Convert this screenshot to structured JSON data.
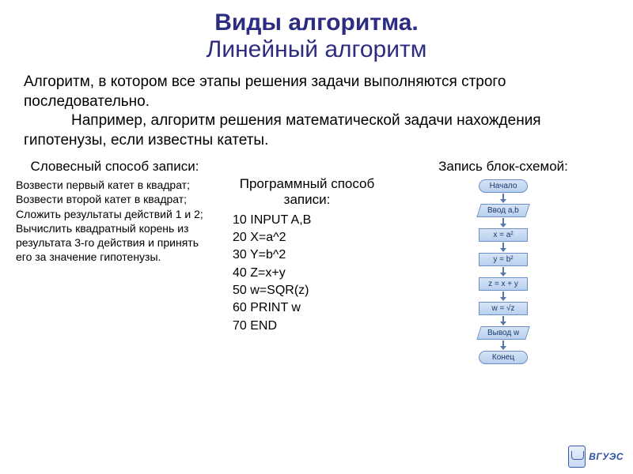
{
  "title": {
    "main": "Виды алгоритма.",
    "sub": "Линейный алгоритм"
  },
  "intro": {
    "p1": "Алгоритм, в котором все этапы решения задачи выполняются строго последовательно.",
    "p2": "Например, алгоритм решения математической задачи нахождения гипотенузы, если известны катеты."
  },
  "columns": {
    "verbal": {
      "title": "Словесный способ записи:",
      "body": "Возвести первый катет в квадрат;\nВозвести второй катет в квадрат;\nСложить результаты действий 1 и 2;\nВычислить квадратный корень из результата 3-го действия и принять его за значение гипотенузы.",
      "fontsize": 14
    },
    "program": {
      "title": "Программный способ записи:",
      "lines": [
        "10 INPUT A,B",
        "20 X=a^2",
        "30 Y=b^2",
        "40 Z=x+y",
        "50 w=SQR(z)",
        "60 PRINT w",
        "70 END"
      ],
      "fontsize": 16
    },
    "flow": {
      "title": "Запись блок-схемой:",
      "nodes": [
        {
          "label": "Начало",
          "shape": "terminal"
        },
        {
          "label": "Ввод a,b",
          "shape": "io"
        },
        {
          "label": "x = a²",
          "shape": "process"
        },
        {
          "label": "y = b²",
          "shape": "process"
        },
        {
          "label": "z = x + y",
          "shape": "process"
        },
        {
          "label": "w = √z",
          "shape": "process"
        },
        {
          "label": "Вывод w",
          "shape": "io"
        },
        {
          "label": "Конец",
          "shape": "terminal"
        }
      ],
      "box_bg_gradient": [
        "#d6e4f5",
        "#b8d0ee"
      ],
      "box_border": "#6a8fc9",
      "text_color": "#1a3a6e",
      "arrow_color": "#5577aa",
      "fontsize": 10
    }
  },
  "logo": {
    "text": "ВГУЭС"
  },
  "colors": {
    "title": "#2c2c80",
    "body_text": "#000000",
    "background": "#ffffff"
  }
}
